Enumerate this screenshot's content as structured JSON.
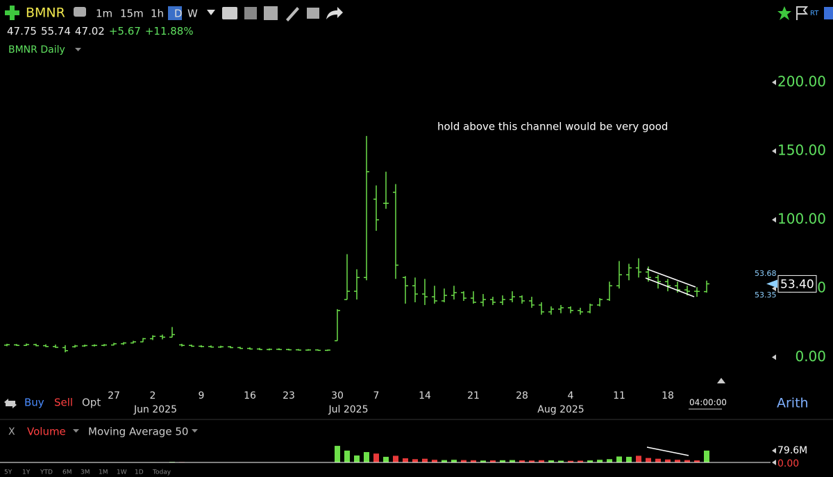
{
  "toolbar": {
    "symbol": "BMNR",
    "timeframes": [
      "1m",
      "15m",
      "1h",
      "D",
      "W"
    ],
    "rt": "RT"
  },
  "quote": {
    "open": "47.75",
    "high": "55.74",
    "low": "47.02",
    "change": "+5.67",
    "percent": "+11.88%"
  },
  "chart_label": "BMNR Daily",
  "chart_data": {
    "type": "ohlc",
    "annotation": "hold above this channel would be very good",
    "categories": [
      null,
      null,
      null,
      null,
      null,
      null,
      null,
      null,
      null,
      null,
      null,
      null,
      "27",
      null,
      null,
      null,
      "2",
      null,
      null,
      null,
      null,
      "9",
      null,
      null,
      null,
      null,
      "16",
      null,
      null,
      null,
      "23",
      null,
      null,
      null,
      null,
      "30",
      null,
      null,
      null,
      "7",
      null,
      null,
      null,
      null,
      "14",
      null,
      null,
      null,
      null,
      "21",
      null,
      null,
      null,
      null,
      "28",
      null,
      null,
      null,
      null,
      "4",
      null,
      null,
      null,
      null,
      "11",
      null,
      null,
      null,
      null,
      "18",
      null,
      null,
      null,
      null
    ],
    "month_labels": [
      "Jun 2025",
      "Jul 2025",
      "Aug 2025"
    ],
    "open": [
      8.5,
      8.8,
      9.0,
      8.6,
      9.2,
      8.4,
      7.8,
      7.0,
      7.6,
      8.2,
      8.5,
      8.6,
      8.9,
      9.8,
      10.4,
      11.2,
      13.5,
      15.2,
      14.6,
      9.0,
      8.6,
      8.0,
      7.8,
      7.4,
      7.6,
      7.0,
      6.4,
      6.0,
      5.6,
      5.8,
      5.6,
      5.4,
      5.2,
      5.3,
      5.0,
      12,
      42,
      48,
      58,
      115,
      112,
      120,
      58,
      52,
      46,
      44,
      41,
      45,
      47,
      43,
      40,
      42,
      40,
      42,
      44,
      41,
      38,
      33,
      35,
      36,
      34,
      33,
      38,
      42,
      52,
      60,
      65,
      62,
      58,
      55,
      52,
      49,
      48,
      47.75
    ],
    "high": [
      9.5,
      9.8,
      9.6,
      10.0,
      9.8,
      9.4,
      9.2,
      8.8,
      9.0,
      9.2,
      9.4,
      9.6,
      10.5,
      11,
      12,
      14,
      16,
      16.5,
      22,
      9.8,
      9.2,
      8.8,
      8.6,
      8.4,
      8.2,
      7.6,
      7.2,
      6.8,
      6.4,
      6.5,
      6.2,
      6.0,
      5.9,
      5.8,
      5.6,
      35,
      75,
      64,
      161,
      125,
      135,
      126,
      59,
      58,
      57,
      52,
      50,
      52,
      48,
      48,
      46,
      44,
      45,
      48,
      45,
      44,
      40,
      37,
      38,
      37,
      36,
      39,
      43,
      55,
      70,
      68,
      72,
      66,
      60,
      57,
      55,
      52,
      51,
      55.74
    ],
    "low": [
      7.6,
      8.0,
      8.2,
      8.2,
      8.0,
      7.4,
      6.8,
      3.6,
      7.0,
      7.6,
      7.8,
      8.0,
      8.6,
      9,
      10,
      11,
      12.5,
      13,
      14.5,
      7.8,
      7.6,
      7.2,
      7.0,
      6.8,
      6.6,
      6.0,
      5.6,
      5.2,
      5.0,
      5.2,
      5.0,
      4.9,
      4.8,
      4.8,
      4.6,
      12,
      42,
      42,
      56,
      92,
      108,
      57,
      39,
      40,
      38,
      39,
      40,
      42,
      41,
      39,
      37,
      38,
      38,
      40,
      39,
      36,
      31,
      31,
      32,
      32,
      31,
      32,
      37,
      41,
      50,
      56,
      58,
      55,
      50,
      48,
      47,
      45,
      44,
      47.02
    ],
    "close": [
      8.8,
      9.1,
      8.6,
      9.2,
      8.4,
      7.8,
      7.2,
      4.8,
      8.2,
      8.5,
      8.6,
      8.9,
      9.8,
      10.4,
      11.2,
      13.5,
      15.2,
      14.6,
      16.5,
      8.6,
      8.0,
      7.8,
      7.4,
      7.6,
      7.0,
      6.4,
      6.0,
      5.6,
      5.8,
      5.6,
      5.4,
      5.2,
      5.3,
      5.0,
      5.2,
      34,
      48,
      58,
      135,
      100,
      112,
      67,
      52,
      46,
      44,
      41,
      45,
      47,
      43,
      40,
      42,
      40,
      42,
      44,
      41,
      38,
      33,
      35,
      36,
      34,
      33,
      38,
      42,
      52,
      60,
      65,
      62,
      58,
      55,
      52,
      49,
      48,
      47.9,
      53.4
    ],
    "volume": [
      1.5,
      1.2,
      1.0,
      1.1,
      1.0,
      1.2,
      1.0,
      1.8,
      1.3,
      1.0,
      0.9,
      1.0,
      1.2,
      1.3,
      1.5,
      2.0,
      2.5,
      2.2,
      4.0,
      3.0,
      1.6,
      1.4,
      1.2,
      1.0,
      1.1,
      1.2,
      1.0,
      0.9,
      0.8,
      0.8,
      0.7,
      0.7,
      0.6,
      0.6,
      0.7,
      112,
      80,
      47,
      70,
      60,
      38,
      45,
      28,
      22,
      25,
      18,
      16,
      18,
      16,
      15,
      13,
      14,
      15,
      16,
      14,
      13,
      15,
      14,
      12,
      11,
      12,
      14,
      18,
      22,
      40,
      38,
      45,
      30,
      25,
      20,
      18,
      16,
      14,
      80
    ],
    "color": "#6ee04a",
    "up_color": "#6ee04a",
    "down_color": "#e83a3a",
    "ylim": [
      -15,
      212
    ],
    "yticks": [
      {
        "value": 0,
        "label": "0.00"
      },
      {
        "value": 50,
        "label": "50.00"
      },
      {
        "value": 100,
        "label": "100.00"
      },
      {
        "value": 150,
        "label": "150.00"
      },
      {
        "value": 200,
        "label": "200.00"
      }
    ],
    "volume_ylim": [
      0,
      79.6
    ],
    "volume_ticks": [
      {
        "value": 79.6,
        "label": "79.6M"
      },
      {
        "value": 0,
        "label": "0.00"
      }
    ]
  },
  "price_markers": {
    "upper": "53.68",
    "last": "53.40",
    "lower": "53.35"
  },
  "trade_buttons": [
    "Buy",
    "Sell",
    "Opt"
  ],
  "time_label": "04:00:00",
  "scale_mode": "Arith",
  "volume_panel": {
    "close": "X",
    "study": "Volume",
    "overlay": "Moving Average 50"
  },
  "ranges": [
    "5Y",
    "1Y",
    "YTD",
    "6M",
    "3M",
    "1M",
    "1W",
    "1D",
    "Today"
  ]
}
